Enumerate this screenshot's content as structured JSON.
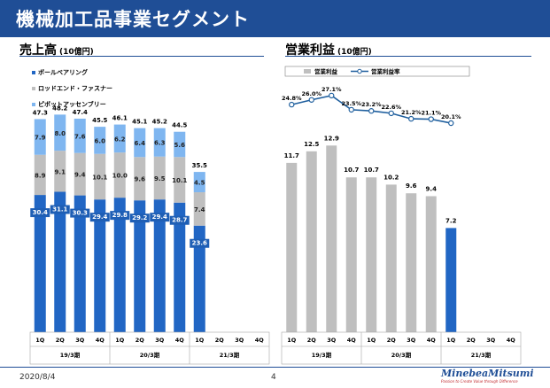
{
  "header": {
    "title": "機械加工品事業セグメント"
  },
  "footer": {
    "date": "2020/8/4",
    "page": "4",
    "logo_text": "MinebeaMitsumi",
    "logo_tagline": "Passion to Create Value through Difference"
  },
  "colors": {
    "brand": "#1f4e96",
    "ball": "#2166c4",
    "rod": "#bfbfbf",
    "pivot": "#7fb6f0",
    "op_profit": "#bfbfbf",
    "op_profit_highlight": "#2166c4",
    "op_margin": "#1f5f9e"
  },
  "chart_data": [
    {
      "type": "bar",
      "stacked": true,
      "title": "売上高",
      "unit": "(10億円)",
      "categories": [
        "1Q",
        "2Q",
        "3Q",
        "4Q",
        "1Q",
        "2Q",
        "3Q",
        "4Q",
        "1Q",
        "2Q",
        "3Q",
        "4Q"
      ],
      "periods": [
        {
          "label": "19/3期"
        },
        {
          "label": "20/3期"
        },
        {
          "label": "21/3期"
        }
      ],
      "series": [
        {
          "name": "ボールベアリング",
          "values": [
            30.4,
            31.1,
            30.3,
            29.4,
            29.8,
            29.2,
            29.4,
            28.7,
            23.6,
            null,
            null,
            null
          ]
        },
        {
          "name": "ロッドエンド・ファスナー",
          "values": [
            8.9,
            9.1,
            9.4,
            10.1,
            10.0,
            9.6,
            9.5,
            10.1,
            7.4,
            null,
            null,
            null
          ]
        },
        {
          "name": "ピボットアッセンブリー",
          "values": [
            7.9,
            8.0,
            7.6,
            6.0,
            6.2,
            6.4,
            6.3,
            5.6,
            4.5,
            null,
            null,
            null
          ]
        }
      ],
      "totals": [
        "47.3",
        "48.2",
        "47.4",
        "45.5",
        "46.1",
        "45.1",
        "45.2",
        "44.5",
        "35.5",
        null,
        null,
        null
      ],
      "ylim": [
        0,
        52
      ],
      "legend": "top-left"
    },
    {
      "type": "bar",
      "title": "営業利益",
      "unit": "(10億円)",
      "categories": [
        "1Q",
        "2Q",
        "3Q",
        "4Q",
        "1Q",
        "2Q",
        "3Q",
        "4Q",
        "1Q",
        "2Q",
        "3Q",
        "4Q"
      ],
      "periods": [
        {
          "label": "19/3期"
        },
        {
          "label": "20/3期"
        },
        {
          "label": "21/3期"
        }
      ],
      "series": [
        {
          "name": "営業利益",
          "type": "bar",
          "values": [
            11.7,
            12.5,
            12.9,
            10.7,
            10.7,
            10.2,
            9.6,
            9.4,
            7.2,
            null,
            null,
            null
          ]
        },
        {
          "name": "営業利益率",
          "type": "line",
          "values": [
            24.8,
            26.0,
            27.1,
            23.5,
            23.2,
            22.6,
            21.2,
            21.1,
            20.1,
            null,
            null,
            null
          ],
          "labels": [
            "24.8%",
            "26.0%",
            "27.1%",
            "23.5%",
            "23.2%",
            "22.6%",
            "21.2%",
            "21.1%",
            "20.1%",
            null,
            null,
            null
          ]
        }
      ],
      "ylim": [
        0,
        17
      ],
      "y2lim": [
        12,
        30
      ],
      "highlight_index": 8,
      "legend": "top"
    }
  ]
}
